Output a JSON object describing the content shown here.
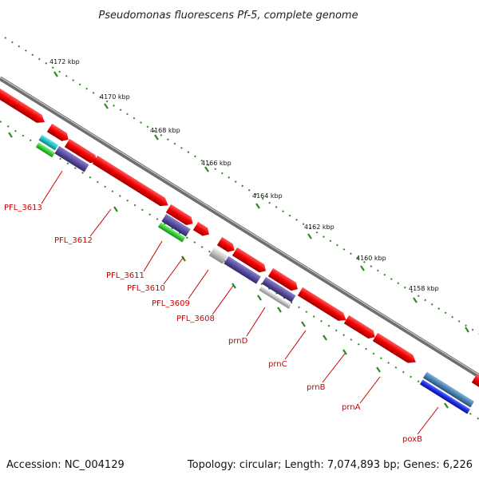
{
  "header": {
    "title": "Pseudomonas fluorescens Pf-5, complete genome"
  },
  "footer": {
    "accession": "Accession: NC_004129",
    "topology": "Topology: circular; Length: 7,074,893 bp; Genes: 6,226"
  },
  "scale": {
    "ticks": [
      "4172 kbp",
      "4170 kbp",
      "4168 kbp",
      "4166 kbp",
      "4164 kbp",
      "4162 kbp",
      "4160 kbp",
      "4158 kbp"
    ]
  },
  "genes": {
    "labels": [
      "PFL_3613",
      "PFL_3612",
      "PFL_3611",
      "PFL_3610",
      "PFL_3609",
      "PFL_3608",
      "prnD",
      "prnC",
      "prnB",
      "prnA",
      "poxB"
    ]
  },
  "colors": {
    "cds": "#ee0000",
    "backbone": "#888888",
    "tick_dots": "#2e8b1f",
    "label": "#cc0000",
    "cog_purple": "#5a4ea0",
    "cog_green": "#33cc33",
    "cog_cyan": "#20c0c0",
    "cog_grey": "#bbbbbb",
    "cog_blue": "#1a2ae0",
    "cog_steel": "#4a7fb0"
  }
}
